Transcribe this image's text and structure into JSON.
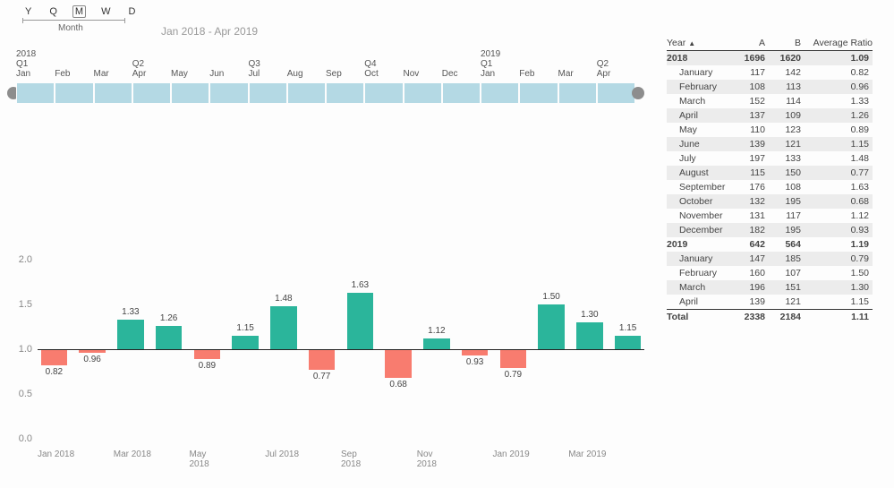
{
  "granularity": {
    "options": [
      "Y",
      "Q",
      "M",
      "W",
      "D"
    ],
    "selected": "M",
    "label": "Month"
  },
  "range_label": "Jan 2018 - Apr 2019",
  "timeline": {
    "years": [
      "2018",
      "",
      "",
      "",
      "",
      "",
      "",
      "",
      "",
      "",
      "",
      "",
      "2019",
      "",
      "",
      ""
    ],
    "quarters": [
      "Q1",
      "",
      "",
      "Q2",
      "",
      "",
      "Q3",
      "",
      "",
      "Q4",
      "",
      "",
      "Q1",
      "",
      "",
      "Q2"
    ],
    "months": [
      "Jan",
      "Feb",
      "Mar",
      "Apr",
      "May",
      "Jun",
      "Jul",
      "Aug",
      "Sep",
      "Oct",
      "Nov",
      "Dec",
      "Jan",
      "Feb",
      "Mar",
      "Apr"
    ],
    "cell_color": "#b4d9e4",
    "cap_color": "#8d8d8d"
  },
  "table": {
    "headers": [
      "Year",
      "A",
      "B",
      "Average Ratio"
    ],
    "rows": [
      {
        "type": "year",
        "label": "2018",
        "a": 1696,
        "b": 1620,
        "r": "1.09"
      },
      {
        "type": "sub",
        "label": "January",
        "a": 117,
        "b": 142,
        "r": "0.82"
      },
      {
        "type": "sub",
        "label": "February",
        "a": 108,
        "b": 113,
        "r": "0.96"
      },
      {
        "type": "sub",
        "label": "March",
        "a": 152,
        "b": 114,
        "r": "1.33"
      },
      {
        "type": "sub",
        "label": "April",
        "a": 137,
        "b": 109,
        "r": "1.26"
      },
      {
        "type": "sub",
        "label": "May",
        "a": 110,
        "b": 123,
        "r": "0.89"
      },
      {
        "type": "sub",
        "label": "June",
        "a": 139,
        "b": 121,
        "r": "1.15"
      },
      {
        "type": "sub",
        "label": "July",
        "a": 197,
        "b": 133,
        "r": "1.48"
      },
      {
        "type": "sub",
        "label": "August",
        "a": 115,
        "b": 150,
        "r": "0.77"
      },
      {
        "type": "sub",
        "label": "September",
        "a": 176,
        "b": 108,
        "r": "1.63"
      },
      {
        "type": "sub",
        "label": "October",
        "a": 132,
        "b": 195,
        "r": "0.68"
      },
      {
        "type": "sub",
        "label": "November",
        "a": 131,
        "b": 117,
        "r": "1.12"
      },
      {
        "type": "sub",
        "label": "December",
        "a": 182,
        "b": 195,
        "r": "0.93"
      },
      {
        "type": "year",
        "label": "2019",
        "a": 642,
        "b": 564,
        "r": "1.19"
      },
      {
        "type": "sub",
        "label": "January",
        "a": 147,
        "b": 185,
        "r": "0.79"
      },
      {
        "type": "sub",
        "label": "February",
        "a": 160,
        "b": 107,
        "r": "1.50"
      },
      {
        "type": "sub",
        "label": "March",
        "a": 196,
        "b": 151,
        "r": "1.30"
      },
      {
        "type": "sub",
        "label": "April",
        "a": 139,
        "b": 121,
        "r": "1.15"
      }
    ],
    "total": {
      "label": "Total",
      "a": 2338,
      "b": 2184,
      "r": "1.11"
    },
    "alt_bg": "#ececec"
  },
  "chart": {
    "type": "bar",
    "ylim": [
      0.0,
      2.0
    ],
    "yticks": [
      0.0,
      0.5,
      1.0,
      1.5,
      2.0
    ],
    "baseline": 1.0,
    "pos_color": "#2bb59b",
    "neg_color": "#f87c6f",
    "bars": [
      {
        "v": 0.82
      },
      {
        "v": 0.96
      },
      {
        "v": 1.33
      },
      {
        "v": 1.26
      },
      {
        "v": 0.89
      },
      {
        "v": 1.15
      },
      {
        "v": 1.48
      },
      {
        "v": 0.77
      },
      {
        "v": 1.63
      },
      {
        "v": 0.68
      },
      {
        "v": 1.12
      },
      {
        "v": 0.93
      },
      {
        "v": 0.79
      },
      {
        "v": 1.5
      },
      {
        "v": 1.3
      },
      {
        "v": 1.15
      }
    ],
    "xticks": [
      "Jan 2018",
      "",
      "Mar 2018",
      "",
      "May 2018",
      "",
      "Jul 2018",
      "",
      "Sep 2018",
      "",
      "Nov 2018",
      "",
      "Jan 2019",
      "",
      "Mar 2019",
      ""
    ],
    "label_fontsize": 10
  }
}
